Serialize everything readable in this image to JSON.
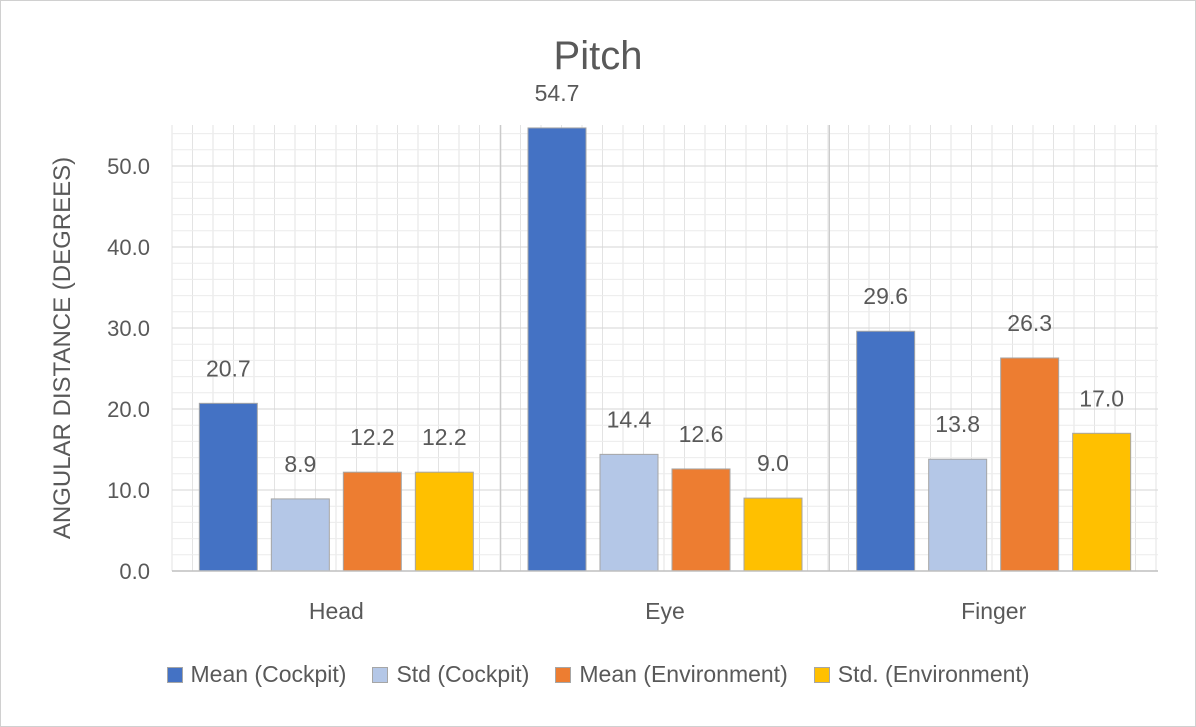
{
  "chart_data": {
    "type": "bar",
    "title": "Pitch",
    "xlabel": "",
    "ylabel": "ANGULAR DISTANCE (DEGREES)",
    "ylim": [
      0,
      55
    ],
    "yticks": [
      "0.0",
      "10.0",
      "20.0",
      "30.0",
      "40.0",
      "50.0"
    ],
    "grid": true,
    "legend_position": "bottom",
    "categories": [
      "Head",
      "Eye",
      "Finger"
    ],
    "series": [
      {
        "name": "Mean (Cockpit)",
        "color": "#4472C4",
        "values": [
          20.7,
          54.7,
          29.6
        ],
        "labels": [
          "20.7",
          "54.7",
          "29.6"
        ]
      },
      {
        "name": "Std (Cockpit)",
        "color": "#B4C7E7",
        "values": [
          8.9,
          14.4,
          13.8
        ],
        "labels": [
          "8.9",
          "14.4",
          "13.8"
        ]
      },
      {
        "name": "Mean (Environment)",
        "color": "#ED7D31",
        "values": [
          12.2,
          12.6,
          26.3
        ],
        "labels": [
          "12.2",
          "12.6",
          "26.3"
        ]
      },
      {
        "name": "Std. (Environment)",
        "color": "#FFC000",
        "values": [
          12.2,
          9.0,
          17.0
        ],
        "labels": [
          "12.2",
          "9.0",
          "17.0"
        ]
      }
    ]
  }
}
